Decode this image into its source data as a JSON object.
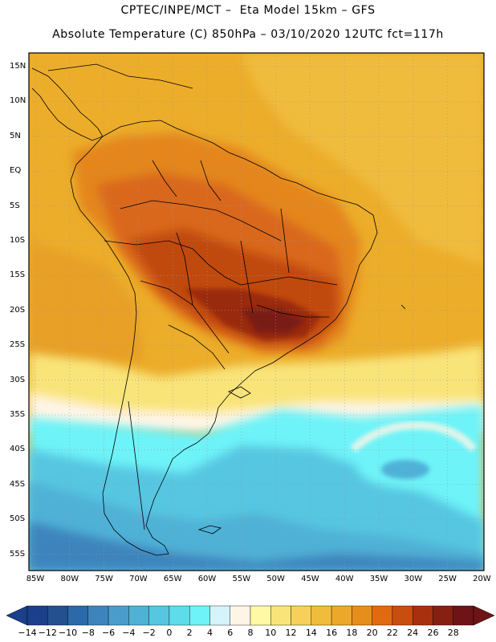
{
  "header": {
    "title_line1": "CPTEC/INPE/MCT –  Eta Model 15km – GFS",
    "title_line2": "Absolute Temperature (C) 850hPa – 03/10/2020 12UTC fct=117h"
  },
  "axes": {
    "lat_labels": [
      "15N",
      "10N",
      "5N",
      "EQ",
      "5S",
      "10S",
      "15S",
      "20S",
      "25S",
      "30S",
      "35S",
      "40S",
      "45S",
      "50S",
      "55S"
    ],
    "lon_labels": [
      "85W",
      "80W",
      "75W",
      "70W",
      "65W",
      "60W",
      "55W",
      "50W",
      "45W",
      "40W",
      "35W",
      "30W",
      "25W",
      "20W"
    ]
  },
  "colorbar": {
    "labels": [
      "-14",
      "-12",
      "-10",
      "-8",
      "-6",
      "-4",
      "-2",
      "0",
      "2",
      "4",
      "6",
      "8",
      "10",
      "12",
      "14",
      "16",
      "18",
      "20",
      "22",
      "24",
      "26",
      "28"
    ],
    "colors": [
      "#1b3f8a",
      "#24508f",
      "#2c69a8",
      "#3d84bd",
      "#4a9dcb",
      "#4fb1d6",
      "#56c6e1",
      "#5fdcec",
      "#6ef3f8",
      "#d4f3fa",
      "#fff5e6",
      "#fff8a4",
      "#f9e47a",
      "#f6d05a",
      "#f0bc3c",
      "#eca82a",
      "#e68e1c",
      "#e06a10",
      "#c84e0e",
      "#a8300e",
      "#862012",
      "#6e1416"
    ]
  },
  "colors": {
    "ocean_warm": "#ecad2a",
    "land_hot": "#c04a0e",
    "southern_cool": "#4fb1d6",
    "border": "#000000"
  }
}
